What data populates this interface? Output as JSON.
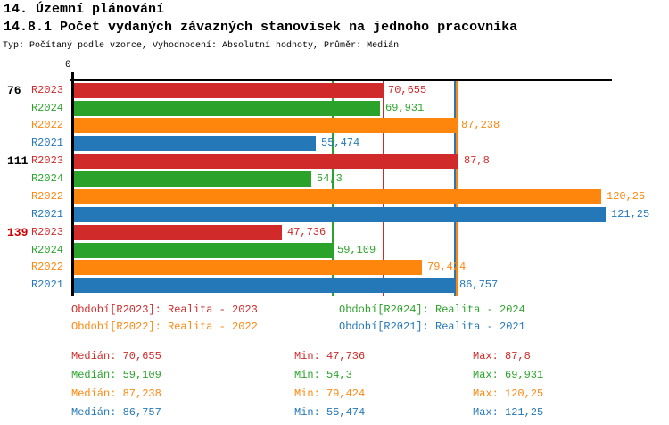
{
  "header": {
    "title": "14. Územní plánování",
    "subtitle": "14.8.1 Počet vydaných závazných stanovisek na jednoho pracovníka",
    "meta": "Typ: Počítaný podle vzorce, Vyhodnocení: Absolutní hodnoty, Průměr: Medián"
  },
  "chart_data": {
    "type": "bar",
    "orientation": "horizontal",
    "title": "14.8.1 Počet vydaných závazných stanovisek na jednoho pracovníka",
    "average_type": "Medián",
    "x_axis": {
      "origin_tick_label": "0",
      "min": 0,
      "max_drawn": 122
    },
    "groups": [
      "76",
      "111",
      "139"
    ],
    "group_label_colors": [
      "#000000",
      "#000000",
      "#cc0000"
    ],
    "series": [
      {
        "id": "R2023",
        "name": "Realita - 2023",
        "color": "#d02a2a",
        "values": [
          70.655,
          87.8,
          47.736
        ],
        "value_labels": [
          "70,655",
          "87,8",
          "47,736"
        ],
        "median": 70.655,
        "stats": {
          "median": "70,655",
          "min": "47,736",
          "max": "87,8"
        }
      },
      {
        "id": "R2024",
        "name": "Realita - 2024",
        "color": "#2ba32b",
        "values": [
          69.931,
          54.3,
          59.109
        ],
        "value_labels": [
          "69,931",
          "54,3",
          "59,109"
        ],
        "median": 59.109,
        "stats": {
          "median": "59,109",
          "min": "54,3",
          "max": "69,931"
        }
      },
      {
        "id": "R2022",
        "name": "Realita - 2022",
        "color": "#ff860d",
        "values": [
          87.238,
          120.25,
          79.424
        ],
        "value_labels": [
          "87,238",
          "120,25",
          "79,424"
        ],
        "median": 87.238,
        "stats": {
          "median": "87,238",
          "min": "79,424",
          "max": "120,25"
        }
      },
      {
        "id": "R2021",
        "name": "Realita - 2021",
        "color": "#2478b8",
        "values": [
          55.474,
          121.25,
          86.757
        ],
        "value_labels": [
          "55,474",
          "121,25",
          "86,757"
        ],
        "median": 86.757,
        "stats": {
          "median": "86,757",
          "min": "55,474",
          "max": "121,25"
        }
      }
    ],
    "legend": {
      "items": [
        {
          "series": "R2023",
          "text": "Období[R2023]: Realita - 2023"
        },
        {
          "series": "R2024",
          "text": "Období[R2024]: Realita - 2024"
        },
        {
          "series": "R2022",
          "text": "Období[R2022]: Realita - 2022"
        },
        {
          "series": "R2021",
          "text": "Období[R2021]: Realita - 2021"
        }
      ]
    },
    "stats_labels": {
      "median": "Medián",
      "min": "Min",
      "max": "Max"
    }
  }
}
